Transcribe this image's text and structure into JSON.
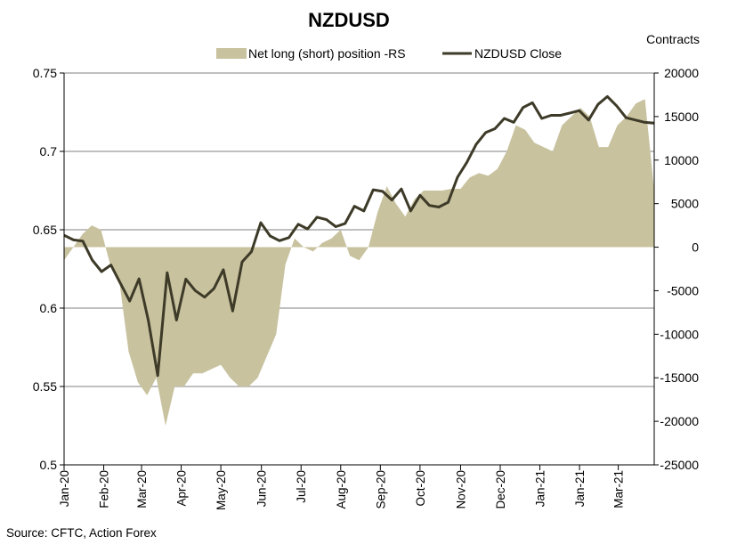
{
  "chart_data": {
    "type": "line",
    "title": "NZDUSD",
    "right_axis_label": "Contracts",
    "source": "Source: CFTC, Action Forex",
    "left_axis": {
      "ylim": [
        0.5,
        0.75
      ],
      "ticks": [
        0.5,
        0.55,
        0.6,
        0.65,
        0.7,
        0.75
      ],
      "tick_labels": [
        "0.5",
        "0.55",
        "0.6",
        "0.65",
        "0.7",
        "0.75"
      ]
    },
    "right_axis": {
      "ylim": [
        -25000,
        20000
      ],
      "ticks": [
        -25000,
        -20000,
        -15000,
        -10000,
        -5000,
        0,
        5000,
        10000,
        15000,
        20000
      ],
      "tick_labels": [
        "-25000",
        "-20000",
        "-15000",
        "-10000",
        "-5000",
        "0",
        "5000",
        "10000",
        "15000",
        "20000"
      ]
    },
    "x_ticks": [
      {
        "label": "Jan-20",
        "week": 0
      },
      {
        "label": "Feb-20",
        "week": 4.3
      },
      {
        "label": "Mar-20",
        "week": 8.4
      },
      {
        "label": "Apr-20",
        "week": 12.7
      },
      {
        "label": "May-20",
        "week": 17.0
      },
      {
        "label": "Jun-20",
        "week": 21.4
      },
      {
        "label": "Jul-20",
        "week": 25.7
      },
      {
        "label": "Aug-20",
        "week": 30.0
      },
      {
        "label": "Sep-20",
        "week": 34.3
      },
      {
        "label": "Oct-20",
        "week": 38.6
      },
      {
        "label": "Nov-20",
        "week": 43.0
      },
      {
        "label": "Dec-20",
        "week": 47.3
      },
      {
        "label": "Jan-21",
        "week": 51.6
      },
      {
        "label": "Jan-21",
        "week": 55.9
      },
      {
        "label": "Mar-21",
        "week": 60.1
      }
    ],
    "series": [
      {
        "name": "Net long (short) position -RS",
        "type": "area",
        "axis": "right",
        "color": "#c8c29f",
        "values": [
          -1500,
          0,
          1500,
          2500,
          2000,
          -2000,
          -4000,
          -12000,
          -15500,
          -17000,
          -15000,
          -20500,
          -16000,
          -16000,
          -14500,
          -14500,
          -14000,
          -13500,
          -15000,
          -16000,
          -16000,
          -15000,
          -12500,
          -10000,
          -2000,
          1000,
          0,
          -500,
          500,
          1000,
          2000,
          -1000,
          -1500,
          0,
          4000,
          7000,
          5000,
          3500,
          5500,
          6500,
          6500,
          6500,
          6700,
          6700,
          8000,
          8500,
          8200,
          9000,
          11000,
          14000,
          13500,
          12000,
          11500,
          11000,
          14000,
          15000,
          16000,
          15000,
          11500,
          11500,
          14000,
          15000,
          16500,
          17000,
          6500
        ]
      },
      {
        "name": "NZDUSD Close",
        "type": "line",
        "axis": "left",
        "color": "#3d3a28",
        "values": [
          0.6465,
          0.6435,
          0.6428,
          0.6307,
          0.6233,
          0.6275,
          0.616,
          0.6045,
          0.6187,
          0.592,
          0.557,
          0.6226,
          0.5924,
          0.6185,
          0.6112,
          0.607,
          0.6125,
          0.6245,
          0.5982,
          0.6295,
          0.636,
          0.6545,
          0.646,
          0.643,
          0.645,
          0.6535,
          0.6505,
          0.658,
          0.6565,
          0.652,
          0.654,
          0.665,
          0.662,
          0.6755,
          0.6745,
          0.669,
          0.676,
          0.662,
          0.672,
          0.6655,
          0.6645,
          0.6675,
          0.6835,
          0.693,
          0.7045,
          0.712,
          0.7145,
          0.721,
          0.7185,
          0.728,
          0.731,
          0.721,
          0.723,
          0.723,
          0.7245,
          0.726,
          0.72,
          0.73,
          0.735,
          0.729,
          0.7215,
          0.72,
          0.7185,
          0.718
        ]
      }
    ],
    "week_max": 64
  }
}
